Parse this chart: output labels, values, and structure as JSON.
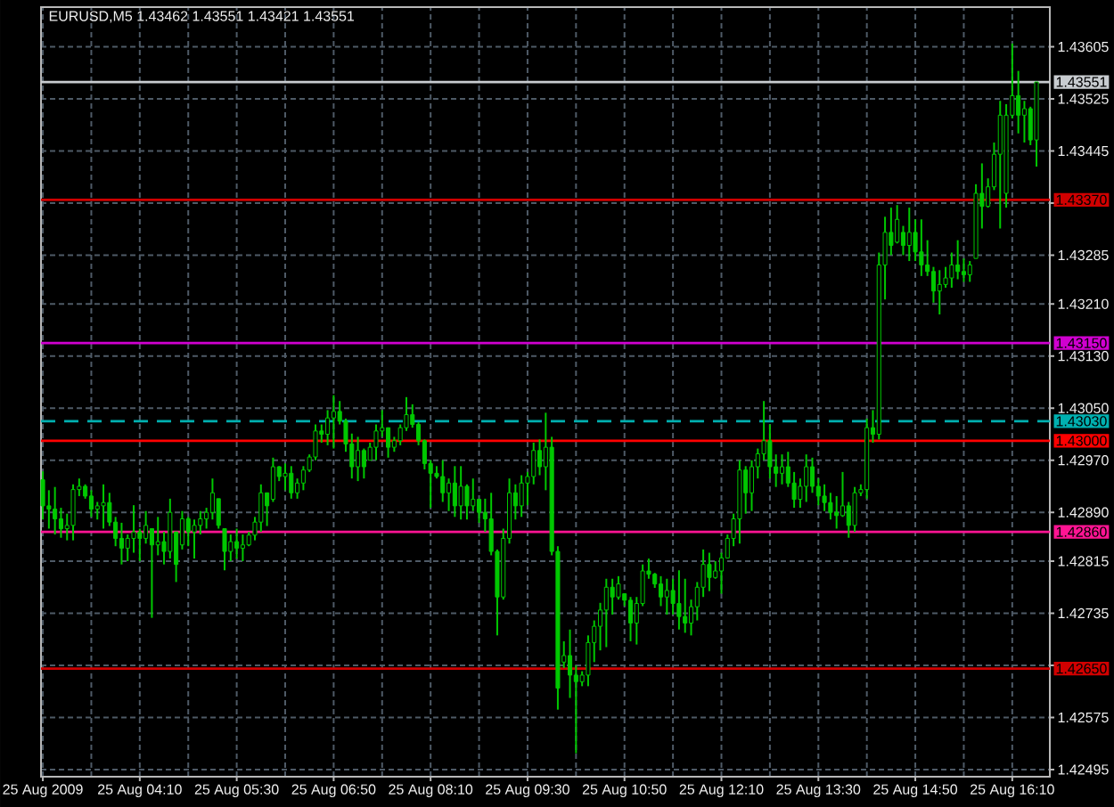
{
  "chart_data": {
    "type": "candlestick",
    "title": "EURUSD,M5 1.43462 1.43551 1.43421 1.43551",
    "color": "#00c800",
    "categories": [
      "25 Aug 2009",
      null,
      null,
      null,
      null,
      null,
      null,
      null,
      null,
      null,
      null,
      null,
      null,
      null,
      null,
      null,
      "25 Aug 04:10",
      null,
      null,
      null,
      null,
      null,
      null,
      null,
      null,
      null,
      null,
      null,
      null,
      null,
      null,
      null,
      "25 Aug 05:30",
      null,
      null,
      null,
      null,
      null,
      null,
      null,
      null,
      null,
      null,
      null,
      null,
      null,
      null,
      null,
      "25 Aug 06:50",
      null,
      null,
      null,
      null,
      null,
      null,
      null,
      null,
      null,
      null,
      null,
      null,
      null,
      null,
      null,
      "25 Aug 08:10",
      null,
      null,
      null,
      null,
      null,
      null,
      null,
      null,
      null,
      null,
      null,
      null,
      null,
      null,
      null,
      "25 Aug 09:30",
      null,
      null,
      null,
      null,
      null,
      null,
      null,
      null,
      null,
      null,
      null,
      null,
      null,
      null,
      null,
      "25 Aug 10:50",
      null,
      null,
      null,
      null,
      null,
      null,
      null,
      null,
      null,
      null,
      null,
      null,
      null,
      null,
      null,
      "25 Aug 12:10",
      null,
      null,
      null,
      null,
      null,
      null,
      null,
      null,
      null,
      null,
      null,
      null,
      null,
      null,
      null,
      "25 Aug 13:30",
      null,
      null,
      null,
      null,
      null,
      null,
      null,
      null,
      null,
      null,
      null,
      null,
      null,
      null,
      null,
      "25 Aug 14:50",
      null,
      null,
      null,
      null,
      null,
      null,
      null,
      null,
      null,
      null,
      null,
      null,
      null,
      null,
      null,
      "25 Aug 16:10",
      null,
      null,
      null,
      null
    ],
    "ohlc": [
      [
        1.4294,
        1.42953,
        1.42879,
        1.429
      ],
      [
        1.429,
        1.42924,
        1.42865,
        1.42895
      ],
      [
        1.42895,
        1.42929,
        1.42856,
        1.4288
      ],
      [
        1.4288,
        1.42897,
        1.42851,
        1.42865
      ],
      [
        1.42865,
        1.42888,
        1.42847,
        1.4287
      ],
      [
        1.4287,
        1.42933,
        1.42847,
        1.42925
      ],
      [
        1.42925,
        1.42942,
        1.42915,
        1.4293
      ],
      [
        1.4293,
        1.42933,
        1.42911,
        1.42915
      ],
      [
        1.42915,
        1.42924,
        1.42883,
        1.42895
      ],
      [
        1.42895,
        1.42906,
        1.42879,
        1.429
      ],
      [
        1.429,
        1.42933,
        1.42865,
        1.42905
      ],
      [
        1.42905,
        1.4292,
        1.42869,
        1.42875
      ],
      [
        1.42875,
        1.42883,
        1.42838,
        1.4285
      ],
      [
        1.4285,
        1.42874,
        1.4281,
        1.42835
      ],
      [
        1.42835,
        1.42856,
        1.42815,
        1.4285
      ],
      [
        1.4285,
        1.42901,
        1.42828,
        1.4286
      ],
      [
        1.4286,
        1.42865,
        1.42815,
        1.4285
      ],
      [
        1.4285,
        1.42892,
        1.42842,
        1.4287
      ],
      [
        1.42865,
        1.42865,
        1.42728,
        1.4284
      ],
      [
        1.4284,
        1.42883,
        1.42824,
        1.42845
      ],
      [
        1.42845,
        1.4286,
        1.4281,
        1.4283
      ],
      [
        1.4283,
        1.42911,
        1.42819,
        1.4289
      ],
      [
        1.4286,
        1.4286,
        1.42783,
        1.4281
      ],
      [
        1.4284,
        1.42892,
        1.42833,
        1.4288
      ],
      [
        1.4288,
        1.42883,
        1.42838,
        1.4286
      ],
      [
        1.4286,
        1.42879,
        1.42819,
        1.4287
      ],
      [
        1.4287,
        1.42892,
        1.42856,
        1.4288
      ],
      [
        1.4288,
        1.42897,
        1.42865,
        1.4289
      ],
      [
        1.4289,
        1.42942,
        1.42879,
        1.4292
      ],
      [
        1.42911,
        1.42911,
        1.42865,
        1.4287
      ],
      [
        1.42865,
        1.42865,
        1.42801,
        1.4283
      ],
      [
        1.4283,
        1.42856,
        1.42815,
        1.42845
      ],
      [
        1.42845,
        1.42865,
        1.42819,
        1.42835
      ],
      [
        1.42835,
        1.42856,
        1.42815,
        1.4284
      ],
      [
        1.4284,
        1.4286,
        1.42838,
        1.42855
      ],
      [
        1.42855,
        1.42883,
        1.42847,
        1.42875
      ],
      [
        1.42875,
        1.42933,
        1.4286,
        1.4292
      ],
      [
        1.4292,
        1.4292,
        1.42869,
        1.429
      ],
      [
        1.4291,
        1.42974,
        1.42906,
        1.4296
      ],
      [
        1.4296,
        1.42961,
        1.42938,
        1.42945
      ],
      [
        1.42945,
        1.42965,
        1.42924,
        1.4295
      ],
      [
        1.4295,
        1.42961,
        1.42911,
        1.4292
      ],
      [
        1.4292,
        1.42942,
        1.42911,
        1.42935
      ],
      [
        1.42935,
        1.42961,
        1.42924,
        1.42955
      ],
      [
        1.42955,
        1.42979,
        1.42952,
        1.42975
      ],
      [
        1.42975,
        1.43025,
        1.4297,
        1.43015
      ],
      [
        1.43015,
        1.43025,
        1.42997,
        1.4301
      ],
      [
        1.4301,
        1.43047,
        1.42993,
        1.43035
      ],
      [
        1.43035,
        1.4307,
        1.42988,
        1.43045
      ],
      [
        1.43045,
        1.43061,
        1.43025,
        1.4303
      ],
      [
        1.4303,
        1.43034,
        1.42983,
        1.42995
      ],
      [
        1.42995,
        1.43011,
        1.42942,
        1.4296
      ],
      [
        1.4296,
        1.43006,
        1.42938,
        1.42985
      ],
      [
        1.42985,
        1.42988,
        1.42942,
        1.4296
      ],
      [
        1.4297,
        1.42997,
        1.4297,
        1.4299
      ],
      [
        1.4299,
        1.43025,
        1.4297,
        1.43015
      ],
      [
        1.43015,
        1.43047,
        1.43006,
        1.4302
      ],
      [
        1.4302,
        1.4302,
        1.42974,
        1.4299
      ],
      [
        1.4299,
        1.43006,
        1.42983,
        1.43
      ],
      [
        1.43,
        1.43025,
        1.42993,
        1.4302
      ],
      [
        1.4302,
        1.43067,
        1.43015,
        1.4304
      ],
      [
        1.4304,
        1.43056,
        1.4302,
        1.43025
      ],
      [
        1.43025,
        1.43029,
        1.42993,
        1.43
      ],
      [
        1.43,
        1.43002,
        1.42956,
        1.42965
      ],
      [
        1.42965,
        1.4297,
        1.42897,
        1.4295
      ],
      [
        1.4295,
        1.42961,
        1.42942,
        1.42945
      ],
      [
        1.42945,
        1.4297,
        1.42906,
        1.4292
      ],
      [
        1.4292,
        1.42942,
        1.42892,
        1.42935
      ],
      [
        1.42935,
        1.42961,
        1.42883,
        1.429
      ],
      [
        1.429,
        1.42961,
        1.42879,
        1.4293
      ],
      [
        1.4293,
        1.42933,
        1.42879,
        1.429
      ],
      [
        1.429,
        1.42942,
        1.42892,
        1.4291
      ],
      [
        1.4291,
        1.42911,
        1.42874,
        1.4289
      ],
      [
        1.4289,
        1.42911,
        1.4286,
        1.4288
      ],
      [
        1.4288,
        1.4292,
        1.42824,
        1.4283
      ],
      [
        1.4283,
        1.42833,
        1.42701,
        1.4276
      ],
      [
        1.4276,
        1.42865,
        1.42756,
        1.4285
      ],
      [
        1.4285,
        1.42942,
        1.42842,
        1.4292
      ],
      [
        1.4292,
        1.42933,
        1.42879,
        1.429
      ],
      [
        1.429,
        1.42947,
        1.42883,
        1.42935
      ],
      [
        1.42935,
        1.42952,
        1.42901,
        1.42945
      ],
      [
        1.42945,
        1.42997,
        1.42933,
        1.42985
      ],
      [
        1.42985,
        1.43002,
        1.42947,
        1.4296
      ],
      [
        1.4296,
        1.43043,
        1.42924,
        1.4299
      ],
      [
        1.4299,
        1.43006,
        1.42824,
        1.4283
      ],
      [
        1.4283,
        1.42838,
        1.42587,
        1.4262
      ],
      [
        1.4266,
        1.42692,
        1.42651,
        1.4267
      ],
      [
        1.4267,
        1.4271,
        1.42605,
        1.4264
      ],
      [
        1.4264,
        1.42655,
        1.4252,
        1.4263
      ],
      [
        1.4263,
        1.42646,
        1.42623,
        1.4264
      ],
      [
        1.4264,
        1.42701,
        1.42623,
        1.4269
      ],
      [
        1.4269,
        1.42724,
        1.4266,
        1.42715
      ],
      [
        1.42715,
        1.42751,
        1.42678,
        1.4274
      ],
      [
        1.4274,
        1.42788,
        1.42683,
        1.42775
      ],
      [
        1.42775,
        1.42788,
        1.42733,
        1.4276
      ],
      [
        1.4276,
        1.42792,
        1.42756,
        1.4278
      ],
      [
        1.42765,
        1.42765,
        1.42746,
        1.42755
      ],
      [
        1.42755,
        1.4276,
        1.42692,
        1.4272
      ],
      [
        1.4272,
        1.4276,
        1.42687,
        1.4275
      ],
      [
        1.4275,
        1.4281,
        1.42746,
        1.428
      ],
      [
        1.428,
        1.42819,
        1.42788,
        1.42795
      ],
      [
        1.42795,
        1.42797,
        1.42774,
        1.4278
      ],
      [
        1.4278,
        1.42792,
        1.42746,
        1.4276
      ],
      [
        1.4276,
        1.42788,
        1.42733,
        1.4277
      ],
      [
        1.4277,
        1.42788,
        1.42733,
        1.4275
      ],
      [
        1.4275,
        1.42801,
        1.4271,
        1.4273
      ],
      [
        1.4273,
        1.42788,
        1.42705,
        1.4272
      ],
      [
        1.4272,
        1.42756,
        1.42701,
        1.42745
      ],
      [
        1.42745,
        1.42783,
        1.42724,
        1.42775
      ],
      [
        1.42775,
        1.42833,
        1.4276,
        1.4281
      ],
      [
        1.4281,
        1.42828,
        1.42769,
        1.4279
      ],
      [
        1.4279,
        1.42815,
        1.42788,
        1.428
      ],
      [
        1.428,
        1.42828,
        1.42765,
        1.4282
      ],
      [
        1.4282,
        1.42856,
        1.42819,
        1.4285
      ],
      [
        1.4285,
        1.42888,
        1.42838,
        1.4288
      ],
      [
        1.4288,
        1.4297,
        1.42842,
        1.42955
      ],
      [
        1.42955,
        1.42961,
        1.42888,
        1.4292
      ],
      [
        1.4292,
        1.4297,
        1.42892,
        1.4296
      ],
      [
        1.4296,
        1.42988,
        1.42942,
        1.4298
      ],
      [
        1.4298,
        1.43061,
        1.4297,
        1.43
      ],
      [
        1.43,
        1.43025,
        1.42942,
        1.4296
      ],
      [
        1.4296,
        1.42979,
        1.42929,
        1.4295
      ],
      [
        1.4295,
        1.42979,
        1.42933,
        1.4296
      ],
      [
        1.4296,
        1.42983,
        1.42929,
        1.42935
      ],
      [
        1.42935,
        1.42952,
        1.42897,
        1.4291
      ],
      [
        1.4291,
        1.42942,
        1.42897,
        1.4293
      ],
      [
        1.4293,
        1.42979,
        1.42906,
        1.4296
      ],
      [
        1.4296,
        1.42974,
        1.4292,
        1.4293
      ],
      [
        1.4293,
        1.42942,
        1.42901,
        1.42915
      ],
      [
        1.42915,
        1.42933,
        1.42892,
        1.42905
      ],
      [
        1.42905,
        1.4292,
        1.42879,
        1.4289
      ],
      [
        1.4289,
        1.42915,
        1.42865,
        1.42885
      ],
      [
        1.42885,
        1.42952,
        1.42883,
        1.429
      ],
      [
        1.429,
        1.42906,
        1.42851,
        1.4287
      ],
      [
        1.4287,
        1.42929,
        1.4286,
        1.4292
      ],
      [
        1.4292,
        1.42933,
        1.42915,
        1.42925
      ],
      [
        1.42925,
        1.43034,
        1.42911,
        1.4302
      ],
      [
        1.4302,
        1.43047,
        1.42997,
        1.4301
      ],
      [
        1.4301,
        1.43289,
        1.43002,
        1.4327
      ],
      [
        1.4327,
        1.43344,
        1.43217,
        1.4332
      ],
      [
        1.4332,
        1.43358,
        1.43285,
        1.433
      ],
      [
        1.43305,
        1.43362,
        1.43303,
        1.4334
      ],
      [
        1.4332,
        1.4333,
        1.43285,
        1.433
      ],
      [
        1.433,
        1.43358,
        1.43276,
        1.4332
      ],
      [
        1.4332,
        1.4334,
        1.43276,
        1.4329
      ],
      [
        1.4329,
        1.4334,
        1.43253,
        1.4327
      ],
      [
        1.4327,
        1.43308,
        1.43253,
        1.4326
      ],
      [
        1.4326,
        1.43267,
        1.43212,
        1.4323
      ],
      [
        1.4323,
        1.43262,
        1.43194,
        1.4324
      ],
      [
        1.4324,
        1.43267,
        1.43235,
        1.4325
      ],
      [
        1.4325,
        1.43289,
        1.43235,
        1.4327
      ],
      [
        1.4327,
        1.43308,
        1.43248,
        1.4326
      ],
      [
        1.4326,
        1.4328,
        1.43244,
        1.43255
      ],
      [
        1.43255,
        1.43276,
        1.43244,
        1.4327
      ],
      [
        1.4328,
        1.43394,
        1.4328,
        1.4338
      ],
      [
        1.4338,
        1.43426,
        1.43326,
        1.4336
      ],
      [
        1.4336,
        1.43403,
        1.43358,
        1.4339
      ],
      [
        1.4339,
        1.43458,
        1.43385,
        1.4344
      ],
      [
        1.4344,
        1.43522,
        1.43326,
        1.435
      ],
      [
        1.4338,
        1.43517,
        1.43358,
        1.435
      ],
      [
        1.435,
        1.4361,
        1.43495,
        1.4353
      ],
      [
        1.4353,
        1.43568,
        1.43472,
        1.435
      ],
      [
        1.435,
        1.43522,
        1.43458,
        1.4351
      ],
      [
        1.4351,
        1.43513,
        1.43454,
        1.43462
      ],
      [
        1.43462,
        1.43551,
        1.43421,
        1.43551
      ]
    ],
    "ylim": [
      1.42484,
      1.43666
    ],
    "yticks": [
      1.42495,
      1.42575,
      {
        "value": 1.42655,
        "label": null
      },
      1.42735,
      1.42815,
      {
        "value": 1.4289,
        "label": "1.42890"
      },
      {
        "value": 1.4297,
        "label": "1.42970"
      },
      {
        "value": 1.4305,
        "label": "1.43050"
      },
      {
        "value": 1.4313,
        "label": "1.43130"
      },
      {
        "value": 1.4321,
        "label": "1.43210"
      },
      1.43285,
      {
        "value": 1.43365,
        "label": null
      },
      1.43445,
      1.43525,
      1.43605
    ],
    "grid": true,
    "ref_lines": [
      {
        "axis": "y",
        "value": 1.43551,
        "label": "1.43551",
        "color": "#c8ccd0"
      },
      {
        "axis": "y",
        "value": 1.4337,
        "label": "1.43370",
        "color": "#d00000"
      },
      {
        "axis": "y",
        "value": 1.4315,
        "label": "1.43150",
        "color": "#d000d0"
      },
      {
        "axis": "y",
        "value": 1.4303,
        "label": "1.43030",
        "color": "#00b0b0",
        "line_style": "dashed"
      },
      {
        "axis": "y",
        "value": 1.43,
        "label": "1.43000",
        "color": "#ff0000"
      },
      {
        "axis": "y",
        "value": 1.4286,
        "label": "1.42860",
        "color": "#ff1493"
      },
      {
        "axis": "y",
        "value": 1.4265,
        "label": "1.42650",
        "color": "#d00000"
      }
    ]
  }
}
